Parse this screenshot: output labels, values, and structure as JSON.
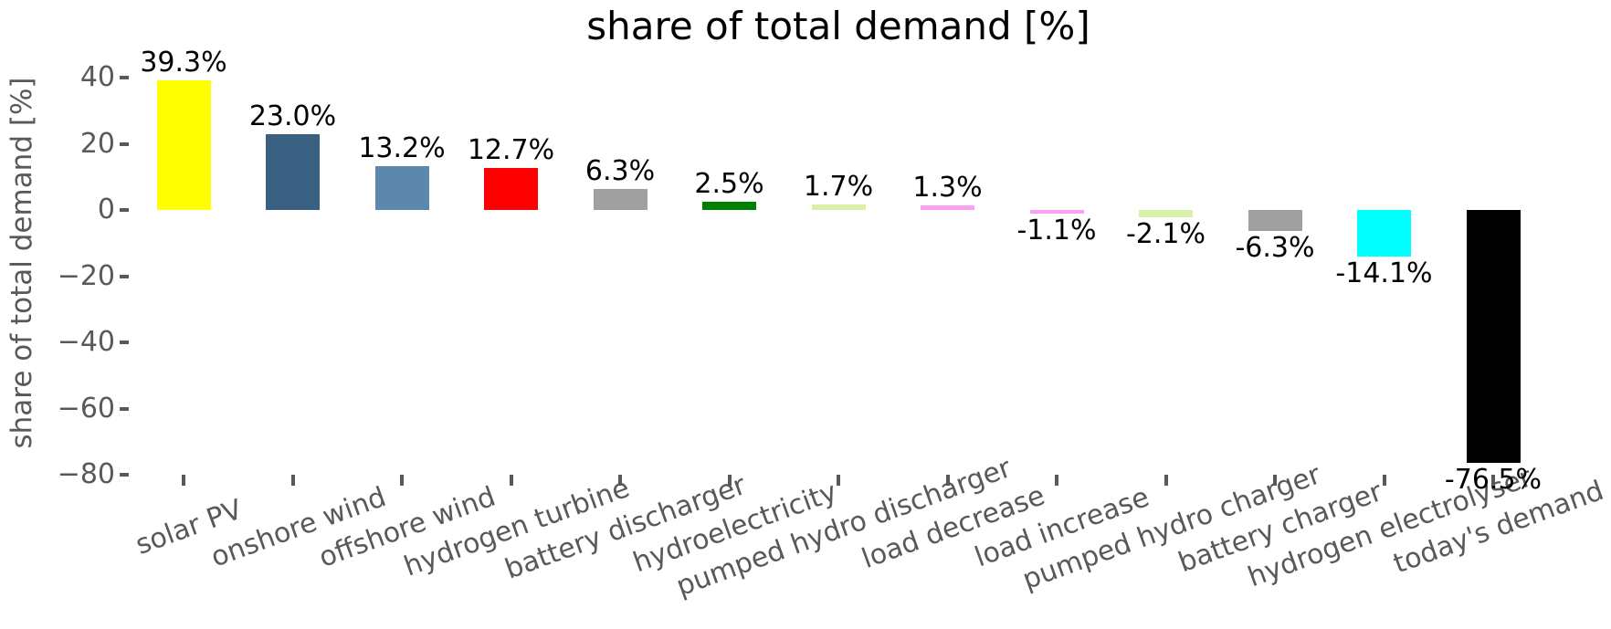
{
  "chart_data": {
    "type": "bar",
    "title": "share of total demand [%]",
    "ylabel": "share of total demand [%]",
    "xlabel": "",
    "categories": [
      "solar PV",
      "onshore wind",
      "offshore wind",
      "hydrogen turbine",
      "battery discharger",
      "hydroelectricity",
      "pumped hydro discharger",
      "load decrease",
      "load increase",
      "pumped hydro charger",
      "battery charger",
      "hydrogen electrolyser",
      "today's demand"
    ],
    "values": [
      39.3,
      23.0,
      13.2,
      12.7,
      6.3,
      2.5,
      1.7,
      1.3,
      -1.1,
      -2.1,
      -6.3,
      -14.1,
      -76.5
    ],
    "bar_labels": [
      "39.3%",
      "23.0%",
      "13.2%",
      "12.7%",
      "6.3%",
      "2.5%",
      "1.7%",
      "1.3%",
      "-1.1%",
      "-2.1%",
      "-6.3%",
      "-14.1%",
      "-76.5%"
    ],
    "bar_colors": [
      "#ffff00",
      "#3a6082",
      "#5e87ac",
      "#ff0000",
      "#a0a0a0",
      "#008000",
      "#d8f0a8",
      "#f9a0f4",
      "#f9a0f4",
      "#d8f0a8",
      "#a0a0a0",
      "#00ffff",
      "#000000"
    ],
    "ytick_values": [
      40,
      20,
      0,
      -20,
      -40,
      -60,
      -80
    ],
    "ytick_labels": [
      "40",
      "20",
      "0",
      "−20",
      "−40",
      "−60",
      "−80"
    ],
    "ylim": [
      -80,
      47.7
    ],
    "grid": false,
    "legend": false,
    "xtick_rotation_deg": 20,
    "title_color": "#000000",
    "value_label_color": "#000000",
    "tick_color": "#595959",
    "background_color": "#ffffff"
  }
}
